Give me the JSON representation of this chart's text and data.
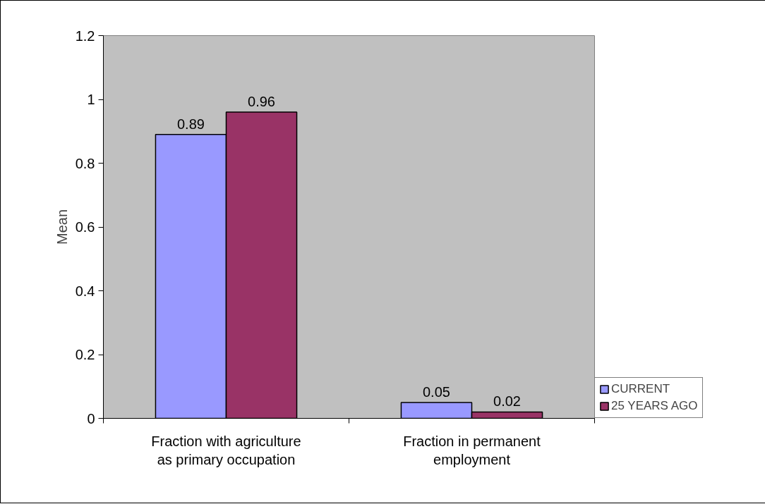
{
  "chart_data": {
    "type": "bar",
    "ylabel": "Mean",
    "categories": [
      "Fraction with agriculture\nas primary occupation",
      "Fraction in permanent\nemployment"
    ],
    "series": [
      {
        "name": "CURRENT",
        "color": "#9999ff",
        "values": [
          0.89,
          0.05
        ]
      },
      {
        "name": "25 YEARS AGO",
        "color": "#993366",
        "values": [
          0.96,
          0.02
        ]
      }
    ],
    "ylim": [
      0,
      1.2
    ],
    "yticks": [
      0,
      0.2,
      0.4,
      0.6,
      0.8,
      1,
      1.2
    ],
    "data_labels": true,
    "grid": false,
    "legend": "right"
  }
}
